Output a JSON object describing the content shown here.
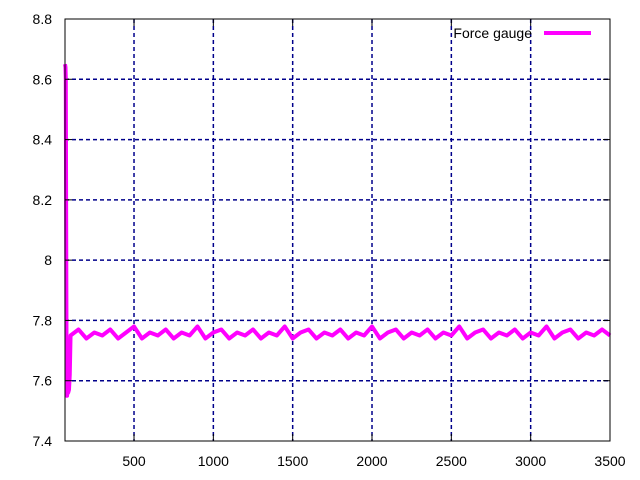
{
  "chart_data": {
    "type": "line",
    "title": "",
    "xlabel": "",
    "ylabel": "",
    "xlim": [
      65,
      3500
    ],
    "ylim": [
      7.4,
      8.8
    ],
    "x_ticks": [
      {
        "value": 500,
        "label": "500"
      },
      {
        "value": 1000,
        "label": "1000"
      },
      {
        "value": 1500,
        "label": "1500"
      },
      {
        "value": 2000,
        "label": "2000"
      },
      {
        "value": 2500,
        "label": "2500"
      },
      {
        "value": 3000,
        "label": "3000"
      },
      {
        "value": 3500,
        "label": "3500"
      }
    ],
    "y_ticks": [
      {
        "value": 7.4,
        "label": "7.4"
      },
      {
        "value": 7.6,
        "label": "7.6"
      },
      {
        "value": 7.8,
        "label": "7.8"
      },
      {
        "value": 8.0,
        "label": "8"
      },
      {
        "value": 8.2,
        "label": "8.2"
      },
      {
        "value": 8.4,
        "label": "8.4"
      },
      {
        "value": 8.6,
        "label": "8.6"
      },
      {
        "value": 8.8,
        "label": "8.8"
      }
    ],
    "grid": true,
    "legend_position": "top-right",
    "series": [
      {
        "name": "Force gauge",
        "color": "#ff00ff",
        "x": [
          65,
          68,
          70,
          72,
          75,
          78,
          80,
          85,
          90,
          95,
          100,
          150,
          200,
          250,
          300,
          350,
          400,
          450,
          500,
          550,
          600,
          650,
          700,
          750,
          800,
          850,
          900,
          950,
          1000,
          1050,
          1100,
          1150,
          1200,
          1250,
          1300,
          1350,
          1400,
          1450,
          1500,
          1550,
          1600,
          1650,
          1700,
          1750,
          1800,
          1850,
          1900,
          1950,
          2000,
          2050,
          2100,
          2150,
          2200,
          2250,
          2300,
          2350,
          2400,
          2450,
          2500,
          2550,
          2600,
          2650,
          2700,
          2750,
          2800,
          2850,
          2900,
          2950,
          3000,
          3050,
          3100,
          3150,
          3200,
          3250,
          3300,
          3350,
          3400,
          3450,
          3500
        ],
        "y": [
          8.65,
          8.64,
          8.6,
          8.2,
          7.6,
          7.55,
          7.58,
          7.56,
          7.57,
          7.62,
          7.75,
          7.77,
          7.74,
          7.76,
          7.75,
          7.77,
          7.74,
          7.76,
          7.78,
          7.74,
          7.76,
          7.75,
          7.77,
          7.74,
          7.76,
          7.75,
          7.78,
          7.74,
          7.76,
          7.77,
          7.74,
          7.76,
          7.75,
          7.77,
          7.74,
          7.76,
          7.75,
          7.78,
          7.74,
          7.76,
          7.77,
          7.74,
          7.76,
          7.75,
          7.77,
          7.74,
          7.76,
          7.75,
          7.78,
          7.74,
          7.76,
          7.77,
          7.74,
          7.76,
          7.75,
          7.77,
          7.74,
          7.76,
          7.75,
          7.78,
          7.74,
          7.76,
          7.77,
          7.74,
          7.76,
          7.75,
          7.77,
          7.74,
          7.76,
          7.75,
          7.78,
          7.74,
          7.76,
          7.77,
          7.74,
          7.76,
          7.75,
          7.77,
          7.75
        ]
      }
    ]
  }
}
